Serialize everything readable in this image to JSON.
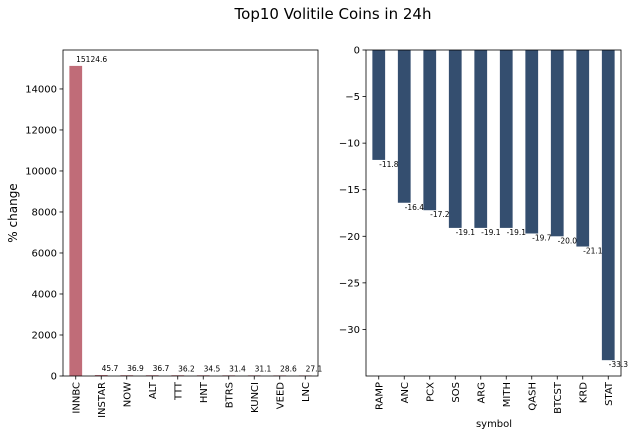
{
  "figure": {
    "title": "Top10 Volitile Coins in 24h"
  },
  "chart_data": [
    {
      "type": "bar",
      "title": "",
      "xlabel": "",
      "ylabel": "% change",
      "ylim": [
        0,
        15900
      ],
      "yticks": [
        0,
        2000,
        4000,
        6000,
        8000,
        10000,
        12000,
        14000
      ],
      "categories": [
        "INNBC",
        "INSTAR",
        "NOW",
        "ALT",
        "TTT",
        "HNT",
        "BTRS",
        "KUNCI",
        "VEED",
        "LNC"
      ],
      "values": [
        15124.6,
        45.7,
        36.9,
        36.7,
        36.2,
        34.5,
        31.4,
        31.1,
        28.6,
        27.1
      ],
      "labels": [
        "15124.6",
        "45.7",
        "36.9",
        "36.7",
        "36.2",
        "34.5",
        "31.4",
        "31.1",
        "28.6",
        "27.1"
      ],
      "color": "#c06c78",
      "grid": false
    },
    {
      "type": "bar",
      "title": "",
      "xlabel": "symbol",
      "ylabel": "",
      "ylim": [
        -35,
        0
      ],
      "yticks": [
        0,
        -5,
        -10,
        -15,
        -20,
        -25,
        -30
      ],
      "yticklabels": [
        "0",
        "−5",
        "−10",
        "−15",
        "−20",
        "−25",
        "−30"
      ],
      "categories": [
        "RAMP",
        "ANC",
        "PCX",
        "SOS",
        "ARG",
        "MITH",
        "QASH",
        "BTCST",
        "KRD",
        "STAT"
      ],
      "values": [
        -11.8,
        -16.4,
        -17.2,
        -19.1,
        -19.1,
        -19.1,
        -19.7,
        -20.0,
        -21.1,
        -33.3
      ],
      "labels": [
        "-11.8",
        "-16.4",
        "-17.2",
        "-19.1",
        "-19.1",
        "-19.1",
        "-19.7",
        "-20.0",
        "-21.1",
        "-33.3"
      ],
      "color": "#344e6f",
      "grid": false
    }
  ]
}
